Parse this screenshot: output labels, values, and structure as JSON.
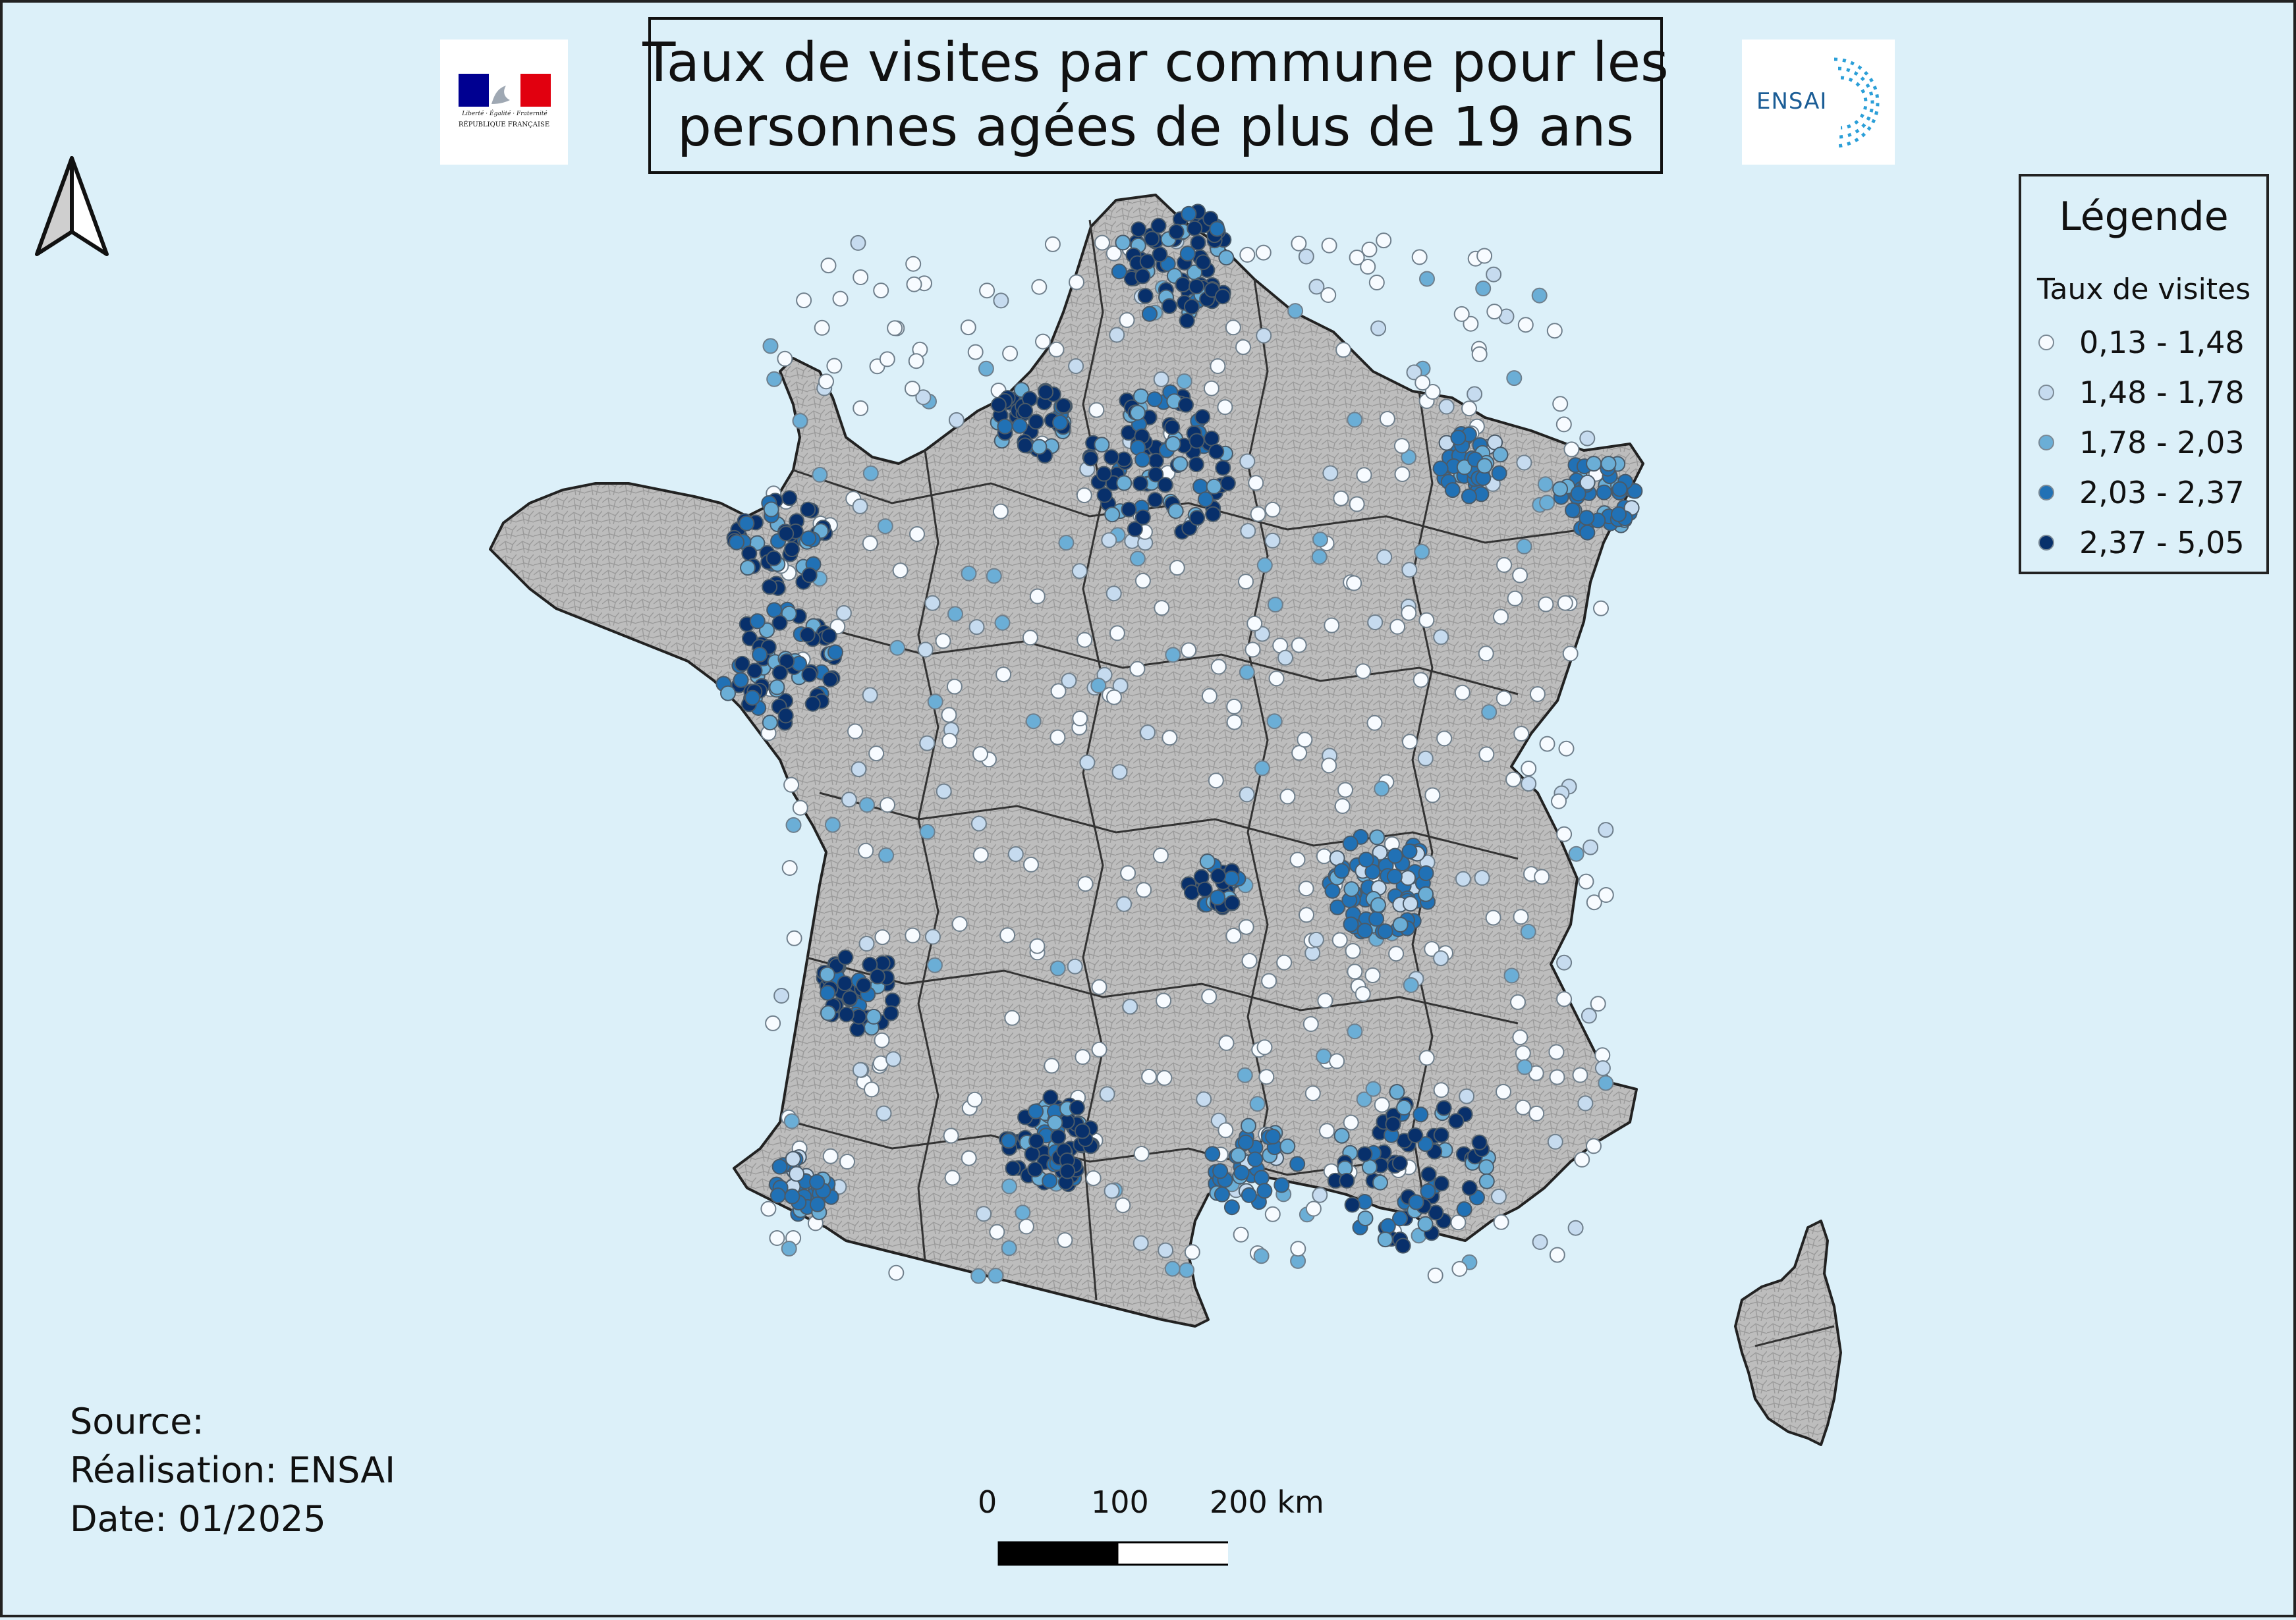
{
  "title": {
    "line1": "Taux de visites par commune pour les",
    "line2": "personnes agées de plus de 19 ans"
  },
  "logos": {
    "left": {
      "icon": "republique-francaise-logo",
      "motto": "Liberté · Égalité · Fraternité",
      "name": "RÉPUBLIQUE FRANÇAISE"
    },
    "right": {
      "icon": "ensai-logo",
      "text": "ENSAI"
    }
  },
  "legend": {
    "title": "Légende",
    "subtitle": "Taux de visites",
    "classes": [
      {
        "label": "0,13 - 1,48",
        "color": "#f7fbff"
      },
      {
        "label": "1,48 - 1,78",
        "color": "#c6dbef"
      },
      {
        "label": "1,78 - 2,03",
        "color": "#6baed6"
      },
      {
        "label": "2,03 - 2,37",
        "color": "#2171b5"
      },
      {
        "label": "2,37 - 5,05",
        "color": "#08306b"
      }
    ]
  },
  "source_block": {
    "source": "Source:",
    "realisation": "Réalisation: ENSAI",
    "date": "Date: 01/2025"
  },
  "scale_bar": {
    "label_0": "0",
    "label_100": "100",
    "label_200": "200 km"
  },
  "north_arrow": {
    "icon": "north-arrow-icon"
  },
  "colors": {
    "sea": "#dcf0f9",
    "land": "#bdbdbd",
    "borders": "#333333"
  }
}
